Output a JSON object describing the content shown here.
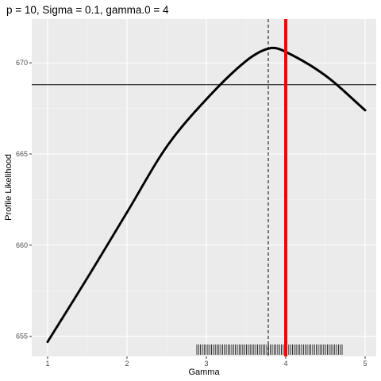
{
  "chart_data": {
    "type": "scatter",
    "title": "p = 10, Sigma = 0.1, gamma.0 = 4",
    "xlabel": "Gamma",
    "ylabel": "Profile Likelihood",
    "xlim": [
      0.8,
      5.14
    ],
    "ylim": [
      653.9,
      672.4
    ],
    "x_ticks": [
      1,
      2,
      3,
      4,
      5
    ],
    "y_ticks": [
      655,
      660,
      665,
      670
    ],
    "x_tick_labels": [
      "1",
      "2",
      "3",
      "4",
      "5"
    ],
    "y_tick_labels": [
      "655",
      "660",
      "665",
      "670"
    ],
    "grid": true,
    "series": [
      {
        "x_start": 1,
        "x_end": 5,
        "count": 400,
        "points": [
          {
            "x": 1.0,
            "y": 654.7
          },
          {
            "x": 1.5,
            "y": 658.2
          },
          {
            "x": 2.0,
            "y": 661.8
          },
          {
            "x": 2.5,
            "y": 665.4
          },
          {
            "x": 3.0,
            "y": 668.0
          },
          {
            "x": 3.5,
            "y": 670.1
          },
          {
            "x": 3.8,
            "y": 670.8
          },
          {
            "x": 4.0,
            "y": 670.6
          },
          {
            "x": 4.5,
            "y": 669.3
          },
          {
            "x": 5.0,
            "y": 667.4
          }
        ],
        "color": "#000000"
      }
    ],
    "horizontal_line": {
      "y": 668.8,
      "color": "#000000"
    },
    "dashed_vline": {
      "x": 3.78,
      "color": "#000000"
    },
    "true_value_line": {
      "x": 4.0,
      "color": "#ff0000"
    },
    "rug": {
      "x_start": 2.88,
      "x_end": 4.71,
      "count": 80,
      "color": "#000000"
    }
  }
}
